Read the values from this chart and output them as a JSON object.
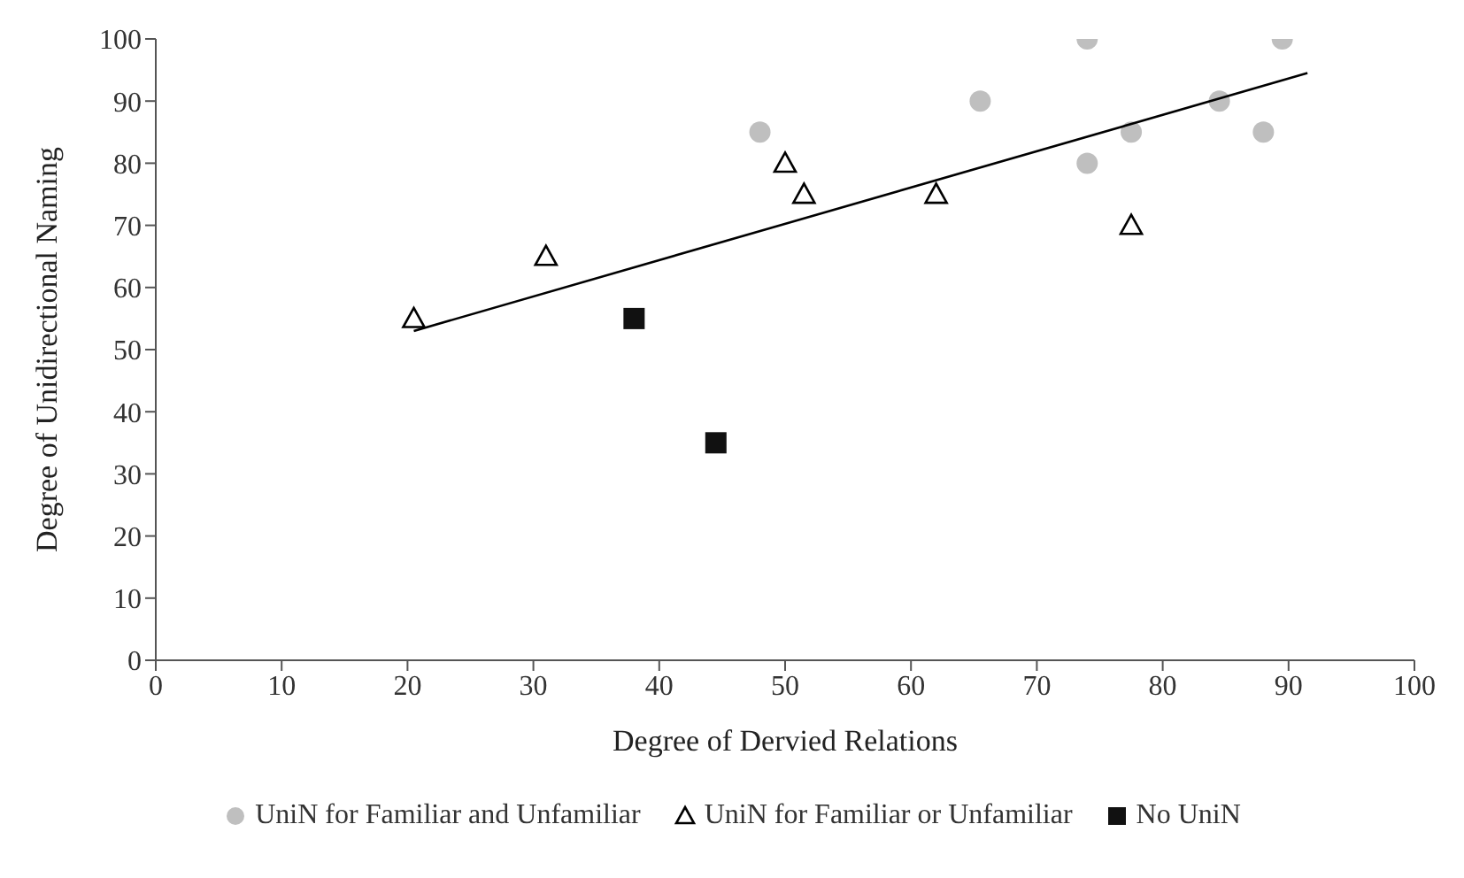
{
  "chart_data": {
    "type": "scatter",
    "xlabel": "Degree of Dervied Relations",
    "ylabel": "Degree of Unidirectional Naming",
    "xlim": [
      0,
      100
    ],
    "xticks": [
      0,
      10,
      20,
      30,
      40,
      50,
      60,
      70,
      80,
      90,
      100
    ],
    "ylim": [
      0,
      100
    ],
    "yticks": [
      0,
      10,
      20,
      30,
      40,
      50,
      60,
      70,
      80,
      90,
      100
    ],
    "grid": false,
    "legend": "bottom",
    "series": [
      {
        "name": "UniN for Familiar and Unfamiliar",
        "color": "#bfbfbf",
        "marker": "circle",
        "x": [
          48,
          65.5,
          74,
          74,
          77.5,
          84.5,
          88,
          89.5
        ],
        "values": [
          85,
          90,
          100,
          80,
          85,
          90,
          85,
          100
        ]
      },
      {
        "name": "UniN for Familiar or Unfamiliar",
        "color": "#000000",
        "marker": "triangle",
        "x": [
          20.5,
          31,
          50,
          51.5,
          62,
          77.5
        ],
        "values": [
          55,
          65,
          80,
          75,
          75,
          70
        ]
      },
      {
        "name": "No UniN",
        "color": "#111111",
        "marker": "square",
        "x": [
          38,
          44.5
        ],
        "values": [
          55,
          35
        ]
      },
      {
        "type": "line",
        "color": "#000000",
        "marker": "none",
        "x": [
          20.5,
          91.5
        ],
        "values": [
          53,
          94.5
        ]
      }
    ]
  }
}
